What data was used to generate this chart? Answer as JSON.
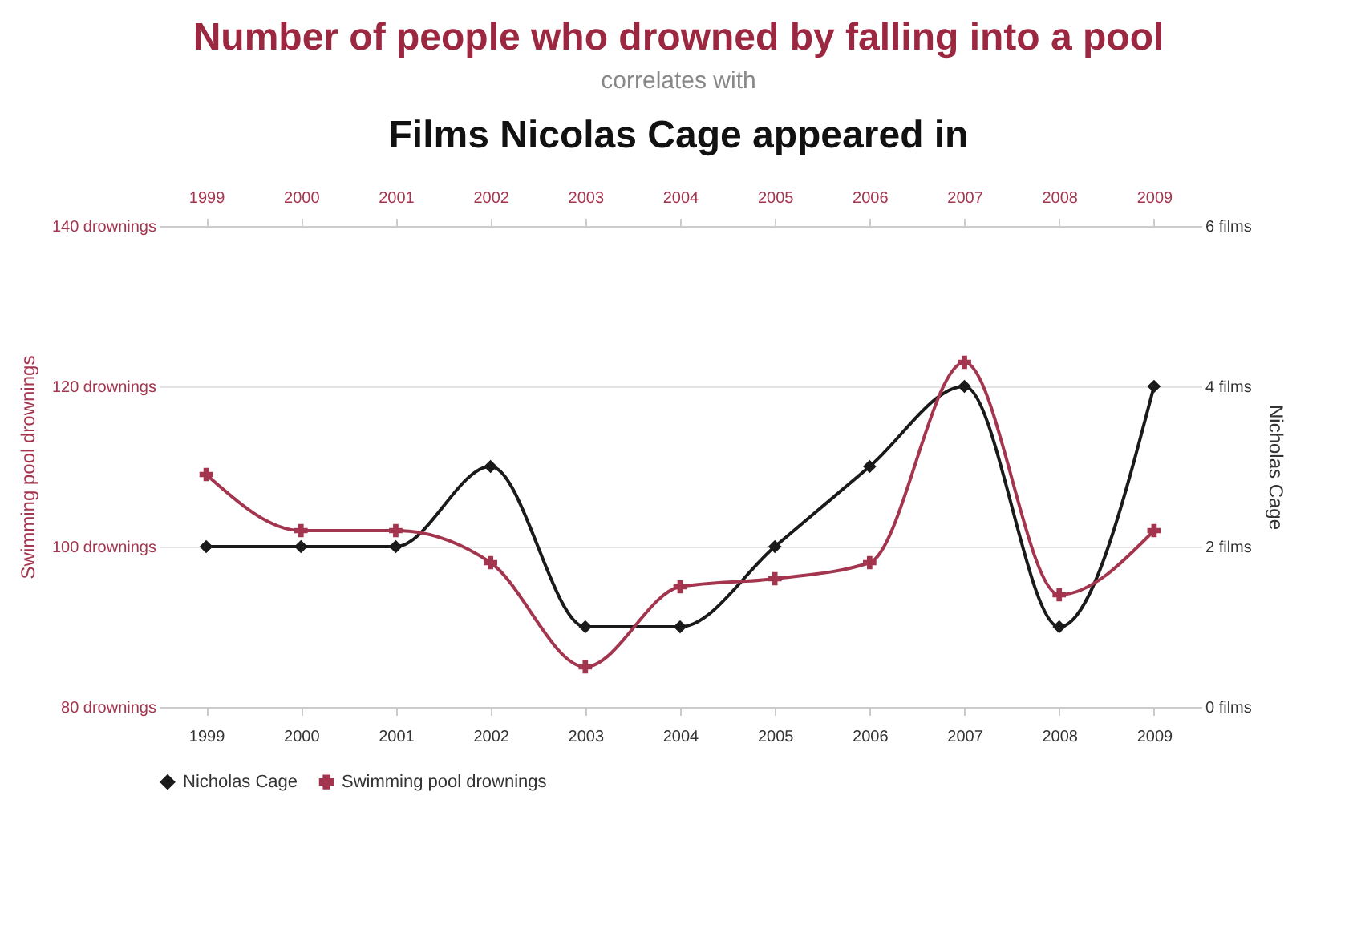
{
  "chart_data": {
    "type": "line",
    "title": "Number of people who drowned by falling into a pool",
    "subtitle": "correlates with",
    "annotations": [
      "Films Nicolas Cage appeared in"
    ],
    "categories": [
      "1999",
      "2000",
      "2001",
      "2002",
      "2003",
      "2004",
      "2005",
      "2006",
      "2007",
      "2008",
      "2009"
    ],
    "series": [
      {
        "name": "Nicholas Cage",
        "color": "#1a1a1a",
        "axis": "y2",
        "marker": "diamond",
        "values": [
          2,
          2,
          2,
          3,
          1,
          1,
          2,
          3,
          4,
          1,
          4
        ]
      },
      {
        "name": "Swimming pool drownings",
        "color": "#a3354f",
        "marker": "cross",
        "values": [
          109,
          102,
          102,
          98,
          85,
          95,
          96,
          98,
          123,
          94,
          102
        ]
      }
    ],
    "ylabel": "Swimming pool drownings",
    "y2label": "Nicholas Cage",
    "ylim": [
      80,
      140
    ],
    "yticks": [
      {
        "value": 80,
        "label": "80 drownings"
      },
      {
        "value": 100,
        "label": "100 drownings"
      },
      {
        "value": 120,
        "label": "120 drownings"
      },
      {
        "value": 140,
        "label": "140 drownings"
      }
    ],
    "y2lim": [
      0,
      6
    ],
    "y2ticks": [
      {
        "value": 0,
        "label": "0 films"
      },
      {
        "value": 2,
        "label": "2 films"
      },
      {
        "value": 4,
        "label": "4 films"
      },
      {
        "value": 6,
        "label": "6 films"
      }
    ],
    "grid": "y",
    "legend": "bottom",
    "line_style": "solid"
  }
}
